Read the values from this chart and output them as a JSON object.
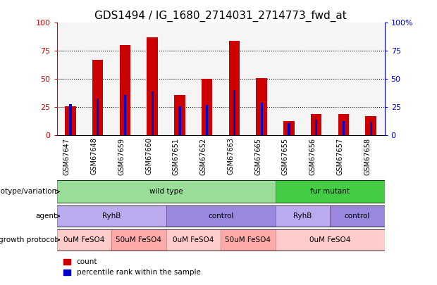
{
  "title": "GDS1494 / IG_1680_2714031_2714773_fwd_at",
  "samples": [
    "GSM67647",
    "GSM67648",
    "GSM67659",
    "GSM67660",
    "GSM67651",
    "GSM67652",
    "GSM67663",
    "GSM67665",
    "GSM67655",
    "GSM67656",
    "GSM67657",
    "GSM67658"
  ],
  "count_values": [
    26,
    67,
    80,
    87,
    36,
    50,
    84,
    51,
    13,
    19,
    19,
    17
  ],
  "percentile_values": [
    28,
    33,
    36,
    39,
    26,
    27,
    40,
    29,
    11,
    14,
    13,
    12
  ],
  "bar_color": "#cc0000",
  "percentile_color": "#0000cc",
  "ylim": [
    0,
    100
  ],
  "yticks": [
    0,
    25,
    50,
    75,
    100
  ],
  "grid_color": "black",
  "title_fontsize": 11,
  "genotype_row": {
    "label": "genotype/variation",
    "segments": [
      {
        "text": "wild type",
        "start": 0,
        "end": 8,
        "color": "#99dd99",
        "edge_color": "#449944"
      },
      {
        "text": "fur mutant",
        "start": 8,
        "end": 12,
        "color": "#44cc44",
        "edge_color": "#228822"
      }
    ]
  },
  "agent_row": {
    "label": "agent",
    "segments": [
      {
        "text": "RyhB",
        "start": 0,
        "end": 4,
        "color": "#bbaaee",
        "edge_color": "#886699"
      },
      {
        "text": "control",
        "start": 4,
        "end": 8,
        "color": "#9988dd",
        "edge_color": "#664488"
      },
      {
        "text": "RyhB",
        "start": 8,
        "end": 10,
        "color": "#bbaaee",
        "edge_color": "#886699"
      },
      {
        "text": "control",
        "start": 10,
        "end": 12,
        "color": "#9988dd",
        "edge_color": "#664488"
      }
    ]
  },
  "growth_row": {
    "label": "growth protocol",
    "segments": [
      {
        "text": "0uM FeSO4",
        "start": 0,
        "end": 2,
        "color": "#ffcccc",
        "edge_color": "#cc8888"
      },
      {
        "text": "50uM FeSO4",
        "start": 2,
        "end": 4,
        "color": "#ffaaaa",
        "edge_color": "#cc6666"
      },
      {
        "text": "0uM FeSO4",
        "start": 4,
        "end": 6,
        "color": "#ffcccc",
        "edge_color": "#cc8888"
      },
      {
        "text": "50uM FeSO4",
        "start": 6,
        "end": 8,
        "color": "#ffaaaa",
        "edge_color": "#cc6666"
      },
      {
        "text": "0uM FeSO4",
        "start": 8,
        "end": 12,
        "color": "#ffcccc",
        "edge_color": "#cc8888"
      }
    ]
  },
  "legend_count_color": "#cc0000",
  "legend_percentile_color": "#0000cc",
  "left_axis_color": "#cc0000",
  "right_axis_color": "#0000cc",
  "axis_bg_color": "#f5f5f5"
}
